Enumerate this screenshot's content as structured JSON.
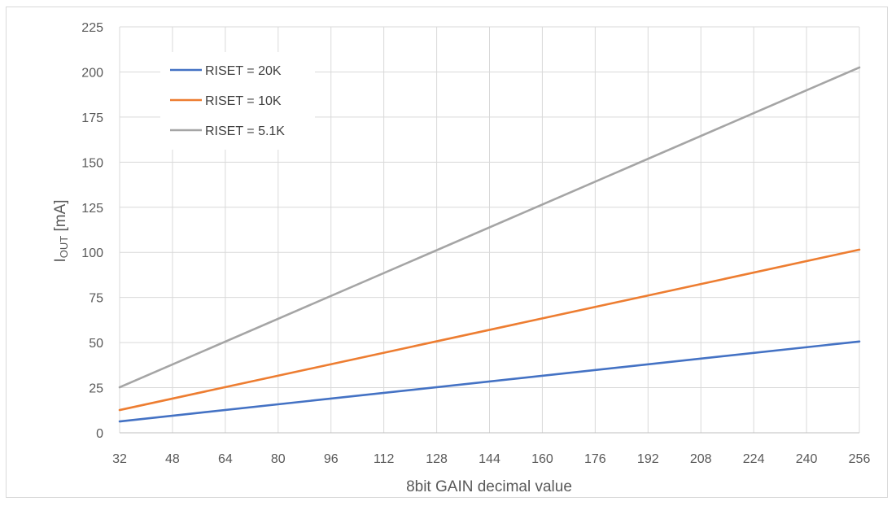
{
  "chart_data": {
    "type": "line",
    "title": "",
    "xlabel": "8bit GAIN decimal value",
    "ylabel_main": "I",
    "ylabel_sub": "OUT",
    "ylabel_suffix": " [mA]",
    "xlim": [
      32,
      256
    ],
    "ylim": [
      0,
      225
    ],
    "x_ticks": [
      32,
      48,
      64,
      80,
      96,
      112,
      128,
      144,
      160,
      176,
      192,
      208,
      224,
      240,
      256
    ],
    "y_ticks": [
      0,
      25,
      50,
      75,
      100,
      125,
      150,
      175,
      200,
      225
    ],
    "grid": true,
    "legend_position": "top-left",
    "series": [
      {
        "name": "RISET = 20K",
        "color": "#4472c4",
        "x": [
          32,
          256
        ],
        "y": [
          6.3,
          50.6
        ]
      },
      {
        "name": "RISET = 10K",
        "color": "#ed7d31",
        "x": [
          32,
          256
        ],
        "y": [
          12.6,
          101.5
        ]
      },
      {
        "name": "RISET = 5.1K",
        "color": "#a5a5a5",
        "x": [
          32,
          256
        ],
        "y": [
          25.2,
          202.5
        ]
      }
    ]
  }
}
